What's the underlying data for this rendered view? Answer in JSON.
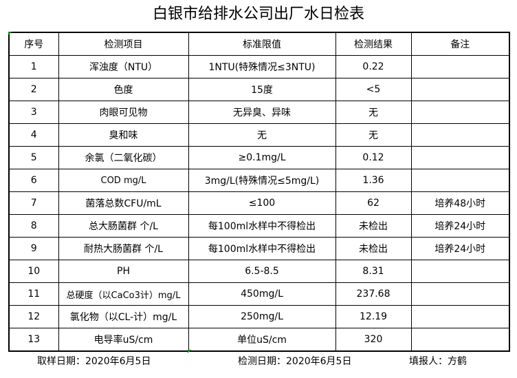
{
  "title": "白银市给排水公司出厂水日检表",
  "headers": [
    "序号",
    "检测项目",
    "标准限值",
    "检测结果",
    "备注"
  ],
  "rows": [
    [
      "1",
      "浑浊度（NTU）",
      "1NTU(特殊情况≤3NTU)",
      "0.22",
      ""
    ],
    [
      "2",
      "色度",
      "15度",
      "<5",
      ""
    ],
    [
      "3",
      "肉眼可见物",
      "无异臭、异味",
      "无",
      ""
    ],
    [
      "4",
      "臭和味",
      "无",
      "无",
      ""
    ],
    [
      "5",
      "余氯（二氧化碳）",
      "≥0.1mg/L",
      "0.12",
      ""
    ],
    [
      "6",
      "COD          mg/L",
      "3mg/L(特殊情况≤5mg/L)",
      "1.36",
      ""
    ],
    [
      "7",
      "菌落总数CFU/mL",
      "≤100",
      "62",
      "培养48小时"
    ],
    [
      "8",
      "总大肠菌群 个/L",
      "每100ml水样中不得检出",
      "未检出",
      "培养24小时"
    ],
    [
      "9",
      "耐热大肠菌群 个/L",
      "每100ml水样中不得检出",
      "未检出",
      "培养24小时"
    ],
    [
      "10",
      "PH",
      "6.5-8.5",
      "8.31",
      ""
    ],
    [
      "11",
      "总硬度（以CaCo3计）mg/L",
      "450mg/L",
      "237.68",
      ""
    ],
    [
      "12",
      "氯化物（以CL-计）mg/L",
      "250mg/L",
      "12.19",
      ""
    ],
    [
      "13",
      "电导率uS/cm",
      "单位uS/cm",
      "320",
      ""
    ]
  ],
  "footer": {
    "sample_date": "取样日期：2020年6月5日",
    "test_date": "检测日期：2020年6月5日",
    "reporter": "填报人：方鹤"
  }
}
